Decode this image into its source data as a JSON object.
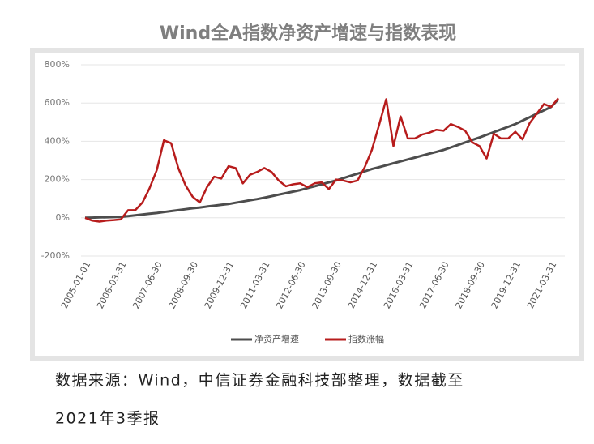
{
  "chart_data": {
    "type": "line",
    "title": "Wind全A指数净资产增速与指数表现",
    "categories": [
      "2005-01-01",
      null,
      null,
      null,
      null,
      "2006-03-31",
      null,
      null,
      null,
      null,
      "2007-06-30",
      null,
      null,
      null,
      null,
      "2008-09-30",
      null,
      null,
      null,
      null,
      "2009-12-31",
      null,
      null,
      null,
      null,
      "2011-03-31",
      null,
      null,
      null,
      null,
      "2012-06-30",
      null,
      null,
      null,
      null,
      "2013-09-30",
      null,
      null,
      null,
      null,
      "2014-12-31",
      null,
      null,
      null,
      null,
      "2016-03-31",
      null,
      null,
      null,
      null,
      "2017-06-30",
      null,
      null,
      null,
      null,
      "2018-09-30",
      null,
      null,
      null,
      null,
      "2019-12-31",
      null,
      null,
      null,
      null,
      "2021-03-31",
      null
    ],
    "series": [
      {
        "name": "净资产增速",
        "color": "#4d4d4d",
        "values": [
          0,
          1,
          2,
          3,
          4,
          5,
          9,
          13,
          17,
          21,
          25,
          30,
          35,
          40,
          45,
          50,
          54,
          59,
          63,
          68,
          72,
          79,
          85,
          92,
          98,
          105,
          113,
          121,
          129,
          137,
          145,
          155,
          165,
          175,
          185,
          195,
          207,
          219,
          231,
          243,
          255,
          265,
          275,
          285,
          295,
          305,
          315,
          325,
          335,
          345,
          355,
          368,
          381,
          394,
          407,
          420,
          434,
          448,
          462,
          476,
          490,
          508,
          526,
          544,
          562,
          580,
          620
        ]
      },
      {
        "name": "指数涨幅",
        "color": "#b71c1c",
        "values": [
          0,
          -15,
          -20,
          -15,
          -12,
          -8,
          40,
          40,
          80,
          155,
          250,
          405,
          390,
          260,
          170,
          110,
          80,
          160,
          215,
          205,
          270,
          260,
          180,
          225,
          240,
          260,
          240,
          195,
          165,
          175,
          180,
          160,
          180,
          185,
          150,
          200,
          195,
          185,
          195,
          265,
          355,
          485,
          620,
          375,
          530,
          415,
          415,
          435,
          445,
          460,
          455,
          490,
          475,
          455,
          395,
          375,
          310,
          440,
          415,
          415,
          450,
          410,
          495,
          545,
          595,
          580,
          625
        ]
      }
    ],
    "ylim": [
      -200,
      800
    ],
    "yticks": [
      {
        "value": -200,
        "label": "-200%"
      },
      {
        "value": 0,
        "label": "0%"
      },
      {
        "value": 200,
        "label": "200%"
      },
      {
        "value": 400,
        "label": "400%"
      },
      {
        "value": 600,
        "label": "600%"
      },
      {
        "value": 800,
        "label": "800%"
      }
    ],
    "grid": true,
    "legend": "bottom",
    "source": [
      "数据来源：Wind，中信证券金融科技部整理，数据截至",
      "2021年3季报"
    ]
  }
}
